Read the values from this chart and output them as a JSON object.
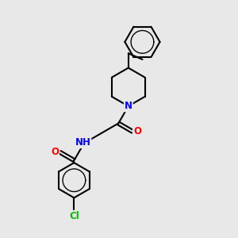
{
  "background_color": "#e8e8e8",
  "bond_color": "#000000",
  "bond_width": 1.5,
  "atom_colors": {
    "N": "#0000ff",
    "O": "#ff0000",
    "Cl": "#00bb00",
    "C": "#000000"
  },
  "font_size_atom": 8.5,
  "figsize": [
    3.0,
    3.0
  ],
  "dpi": 100
}
